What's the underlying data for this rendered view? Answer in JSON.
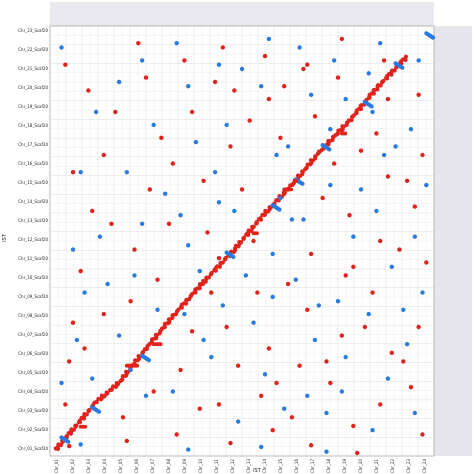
{
  "chart_data": {
    "type": "scatter",
    "title": "",
    "xlabel": "IST",
    "ylabel": "IST",
    "x_tick_labels": [
      "Chr_01",
      "Chr_02",
      "Chr_03",
      "Chr_04",
      "Chr_05",
      "Chr_06",
      "Chr_07",
      "Chr_08",
      "Chr_09",
      "Chr_10",
      "Chr_11",
      "Chr_12",
      "Chr_13",
      "Chr_14",
      "Chr_15",
      "Chr_16",
      "Chr_17",
      "Chr_18",
      "Chr_19",
      "Chr_20",
      "Chr_21",
      "Chr_22",
      "Chr_23",
      "Chr_24"
    ],
    "y_tick_labels": [
      "Chr_23_Scaf20",
      "Chr_22_Scaf20",
      "Chr_21_Scaf20",
      "Chr_20_Scaf20",
      "Chr_19_Scaf20",
      "Chr_18_Scaf20",
      "Chr_17_Scaf20",
      "Chr_16_Scaf20",
      "Chr_15_Scaf20",
      "Chr_14_Scaf20",
      "Chr_13_Scaf20",
      "Chr_12_Scaf20",
      "Chr_11_Scaf20",
      "Chr_10_Scaf20",
      "Chr_09_Scaf20",
      "Chr_08_Scaf20",
      "Chr_07_Scaf20",
      "Chr_06_Scaf20",
      "Chr_05_Scaf20",
      "Chr_04_Scaf20",
      "Chr_03_Scaf20",
      "Chr_02_Scaf20",
      "Chr_01_Scaf20"
    ],
    "xlim": [
      0,
      100
    ],
    "ylim": [
      0,
      100
    ],
    "grid": true,
    "colors": {
      "forward": "#e0231c",
      "reverse": "#2a7be0"
    },
    "diagonal": {
      "forward": [
        [
          1.5,
          1.5
        ],
        [
          12,
          12.5
        ],
        [
          18,
          17
        ],
        [
          25,
          25
        ],
        [
          32,
          32.5
        ],
        [
          40,
          40.5
        ],
        [
          48,
          48
        ],
        [
          55,
          55.5
        ],
        [
          63,
          63
        ],
        [
          70,
          70.5
        ],
        [
          78,
          78
        ],
        [
          85,
          85.5
        ],
        [
          93,
          93
        ]
      ],
      "reverse": [
        [
          3,
          4
        ],
        [
          11,
          11
        ],
        [
          24,
          23
        ],
        [
          46,
          47
        ],
        [
          58,
          58
        ],
        [
          64,
          64
        ],
        [
          71,
          72
        ],
        [
          82,
          82
        ],
        [
          90,
          91
        ],
        [
          98,
          98
        ]
      ],
      "offsets": [
        [
          8,
          9.5,
          -1.2
        ],
        [
          20,
          23,
          1
        ],
        [
          27,
          29,
          -1
        ],
        [
          39,
          40,
          1
        ],
        [
          53,
          54,
          -1.2
        ],
        [
          61,
          63,
          1
        ],
        [
          76,
          77,
          -1
        ]
      ]
    },
    "scatter_points": {
      "forward": [
        [
          5,
          2.3
        ],
        [
          20,
          3.5
        ],
        [
          68,
          2.5
        ],
        [
          80,
          0.7
        ],
        [
          4,
          91
        ],
        [
          10,
          85
        ],
        [
          14,
          70
        ],
        [
          11,
          57
        ],
        [
          8,
          43
        ],
        [
          6,
          31
        ],
        [
          5,
          22
        ],
        [
          4,
          12
        ],
        [
          23,
          96
        ],
        [
          25,
          88
        ],
        [
          26,
          62
        ],
        [
          22,
          48
        ],
        [
          21,
          36
        ],
        [
          19,
          9
        ],
        [
          35,
          92
        ],
        [
          37,
          80
        ],
        [
          32,
          68
        ],
        [
          40,
          64
        ],
        [
          37,
          29
        ],
        [
          34,
          20
        ],
        [
          39,
          11
        ],
        [
          33,
          5
        ],
        [
          45,
          95
        ],
        [
          48,
          85
        ],
        [
          47,
          72
        ],
        [
          50,
          62
        ],
        [
          46,
          30
        ],
        [
          49,
          21
        ],
        [
          44,
          12
        ],
        [
          47,
          3
        ],
        [
          56,
          93
        ],
        [
          57,
          83
        ],
        [
          60,
          74
        ],
        [
          54,
          38
        ],
        [
          57,
          25
        ],
        [
          55,
          14
        ],
        [
          58,
          6
        ],
        [
          66,
          90
        ],
        [
          69,
          79
        ],
        [
          64,
          64
        ],
        [
          68,
          47
        ],
        [
          67,
          34
        ],
        [
          65,
          21
        ],
        [
          63,
          9
        ],
        [
          76,
          97
        ],
        [
          75,
          88
        ],
        [
          74,
          68
        ],
        [
          78,
          56
        ],
        [
          77,
          42
        ],
        [
          76,
          28
        ],
        [
          73,
          17
        ],
        [
          79,
          7
        ],
        [
          87,
          92
        ],
        [
          85,
          75
        ],
        [
          88,
          65
        ],
        [
          86,
          50
        ],
        [
          84,
          38
        ],
        [
          89,
          24
        ],
        [
          86,
          12
        ],
        [
          96,
          84
        ],
        [
          97,
          70
        ],
        [
          95,
          58
        ],
        [
          98,
          45
        ],
        [
          96,
          30
        ],
        [
          94,
          16
        ],
        [
          97,
          5
        ],
        [
          17,
          80
        ],
        [
          29,
          74
        ],
        [
          41,
          52
        ],
        [
          52,
          78
        ],
        [
          62,
          40
        ],
        [
          71,
          60
        ],
        [
          82,
          30
        ],
        [
          91,
          48
        ],
        [
          14,
          33
        ],
        [
          28,
          41
        ],
        [
          43,
          87
        ],
        [
          59,
          17
        ],
        [
          72,
          22
        ],
        [
          88,
          83
        ],
        [
          6,
          66
        ],
        [
          16,
          54
        ],
        [
          31,
          54
        ],
        [
          42,
          38
        ],
        [
          53,
          50
        ],
        [
          67,
          91
        ],
        [
          81,
          71
        ],
        [
          92,
          22
        ],
        [
          9,
          25
        ],
        [
          27,
          15
        ],
        [
          44,
          46
        ],
        [
          61,
          86
        ],
        [
          79,
          44
        ],
        [
          93,
          64
        ]
      ],
      "reverse": [
        [
          8,
          2.7
        ],
        [
          36,
          1.5
        ],
        [
          55,
          2.1
        ],
        [
          72,
          1
        ],
        [
          3,
          95
        ],
        [
          12,
          80
        ],
        [
          8,
          66
        ],
        [
          13,
          51
        ],
        [
          9,
          38
        ],
        [
          7,
          27
        ],
        [
          3,
          17
        ],
        [
          24,
          92
        ],
        [
          27,
          77
        ],
        [
          20,
          66
        ],
        [
          24,
          54
        ],
        [
          22,
          42
        ],
        [
          18,
          28
        ],
        [
          25,
          14
        ],
        [
          33,
          96
        ],
        [
          36,
          86
        ],
        [
          38,
          73
        ],
        [
          34,
          56
        ],
        [
          39,
          43
        ],
        [
          35,
          33
        ],
        [
          32,
          15
        ],
        [
          44,
          91
        ],
        [
          46,
          77
        ],
        [
          43,
          66
        ],
        [
          48,
          57
        ],
        [
          45,
          35
        ],
        [
          42,
          23
        ],
        [
          49,
          8
        ],
        [
          57,
          97
        ],
        [
          55,
          86
        ],
        [
          59,
          70
        ],
        [
          58,
          47
        ],
        [
          53,
          31
        ],
        [
          56,
          19
        ],
        [
          61,
          11
        ],
        [
          65,
          95
        ],
        [
          68,
          84
        ],
        [
          62,
          72
        ],
        [
          66,
          55
        ],
        [
          64,
          41
        ],
        [
          69,
          27
        ],
        [
          67,
          14
        ],
        [
          74,
          92
        ],
        [
          77,
          83
        ],
        [
          73,
          63
        ],
        [
          79,
          51
        ],
        [
          75,
          36
        ],
        [
          77,
          23
        ],
        [
          72,
          10
        ],
        [
          86,
          96
        ],
        [
          84,
          80
        ],
        [
          87,
          70
        ],
        [
          85,
          57
        ],
        [
          89,
          44
        ],
        [
          83,
          33
        ],
        [
          88,
          18
        ],
        [
          84,
          6
        ],
        [
          96,
          92
        ],
        [
          94,
          76
        ],
        [
          98,
          63
        ],
        [
          95,
          51
        ],
        [
          97,
          38
        ],
        [
          93,
          26
        ],
        [
          95,
          10
        ],
        [
          15,
          40
        ],
        [
          30,
          61
        ],
        [
          51,
          42
        ],
        [
          63,
          55
        ],
        [
          81,
          62
        ],
        [
          92,
          34
        ],
        [
          18,
          87
        ],
        [
          40,
          27
        ],
        [
          70,
          35
        ],
        [
          90,
          72
        ],
        [
          6,
          48
        ],
        [
          28,
          34
        ],
        [
          50,
          90
        ],
        [
          76,
          15
        ],
        [
          11,
          18
        ],
        [
          44,
          59
        ],
        [
          60,
          60
        ],
        [
          83,
          89
        ],
        [
          21,
          20
        ],
        [
          36,
          49
        ],
        [
          58,
          37
        ],
        [
          73,
          76
        ]
      ]
    }
  }
}
